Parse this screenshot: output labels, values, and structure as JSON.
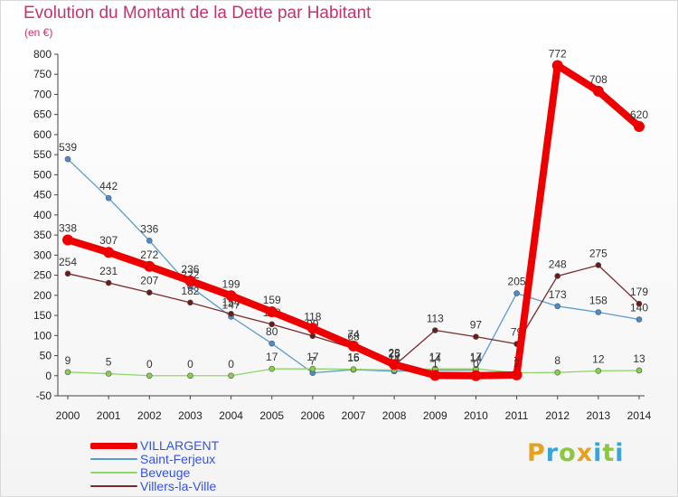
{
  "title": "Evolution du Montant de la Dette par Habitant",
  "unit": "(en €)",
  "logo": {
    "letters": [
      "P",
      "r",
      "o",
      "x",
      "i",
      "t",
      "i"
    ],
    "colors": [
      "#e6a21e",
      "#3aa4d8",
      "#8dc63f",
      "#e6a21e",
      "#3aa4d8",
      "#8dc63f",
      "#3aa4d8"
    ]
  },
  "chart_data": {
    "type": "line",
    "title": "Evolution du Montant de la Dette par Habitant",
    "ylabel": "(en €)",
    "xlabel": "",
    "x": [
      "2000",
      "2001",
      "2002",
      "2003",
      "2004",
      "2005",
      "2006",
      "2007",
      "2008",
      "2009",
      "2010",
      "2011",
      "2012",
      "2013",
      "2014"
    ],
    "ylim": [
      -50,
      800
    ],
    "yticks": [
      -50,
      0,
      50,
      100,
      150,
      200,
      250,
      300,
      350,
      400,
      450,
      500,
      550,
      600,
      650,
      700,
      750,
      800
    ],
    "grid": false,
    "legend_position": "bottom-left",
    "series": [
      {
        "name": "Saint-Ferjeux",
        "color": "#5b9bcf",
        "marker": "#4a8ccc",
        "values": [
          539,
          442,
          336,
          222,
          147,
          80,
          7,
          15,
          11,
          14,
          14,
          205,
          173,
          158,
          140
        ],
        "labels": [
          "539",
          "442",
          "336",
          "222",
          "147",
          "80",
          "7",
          "15",
          "11",
          "14",
          "14",
          "205",
          "173",
          "158",
          "140"
        ]
      },
      {
        "name": "Beveuge",
        "color": "#8fd66a",
        "marker": "#86d04a",
        "values": [
          9,
          5,
          0,
          0,
          0,
          17,
          17,
          16,
          14,
          17,
          17,
          7,
          8,
          12,
          13
        ],
        "labels": [
          "9",
          "5",
          "0",
          "0",
          "0",
          "17",
          "17",
          "16",
          "14",
          "17",
          "17",
          "7",
          "8",
          "12",
          "13"
        ]
      },
      {
        "name": "Villers-la-Ville",
        "color": "#7a2a2a",
        "marker": "#6b1a1a",
        "values": [
          254,
          231,
          207,
          182,
          154,
          128,
          99,
          68,
          25,
          113,
          97,
          79,
          248,
          275,
          179
        ],
        "labels": [
          "254",
          "231",
          "207",
          "182",
          "154",
          "128",
          "99",
          "68",
          "25",
          "113",
          "97",
          "79",
          "248",
          "275",
          "179"
        ]
      },
      {
        "name": "VILLARGENT",
        "color": "#ee0000",
        "marker": "#ee0000",
        "values": [
          338,
          307,
          272,
          236,
          199,
          159,
          118,
          74,
          28,
          1,
          0,
          2,
          772,
          708,
          620
        ],
        "labels": [
          "338",
          "307",
          "272",
          "236",
          "199",
          "159",
          "118",
          "74",
          "28",
          "1",
          "0",
          "2",
          "772",
          "708",
          "620"
        ]
      }
    ]
  }
}
